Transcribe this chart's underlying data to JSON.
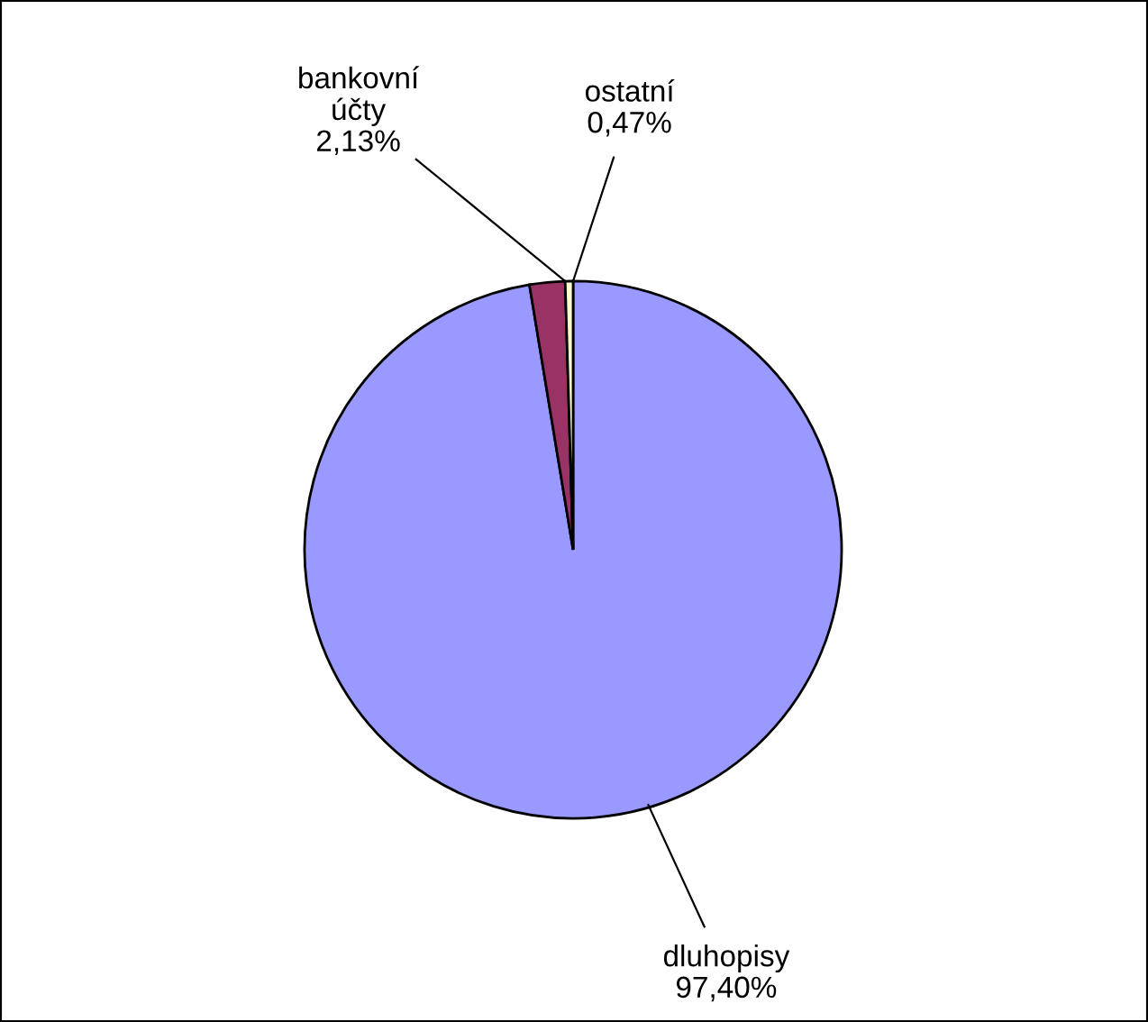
{
  "chart_data": {
    "type": "pie",
    "categories": [
      "dluhopisy",
      "bankovní\núčty",
      "ostatní"
    ],
    "values": [
      97.4,
      2.13,
      0.47
    ],
    "value_labels": [
      "97,40%",
      "2,13%",
      "0,47%"
    ],
    "colors": [
      "#9999ff",
      "#993366",
      "#ffffcc"
    ],
    "legend": false
  }
}
